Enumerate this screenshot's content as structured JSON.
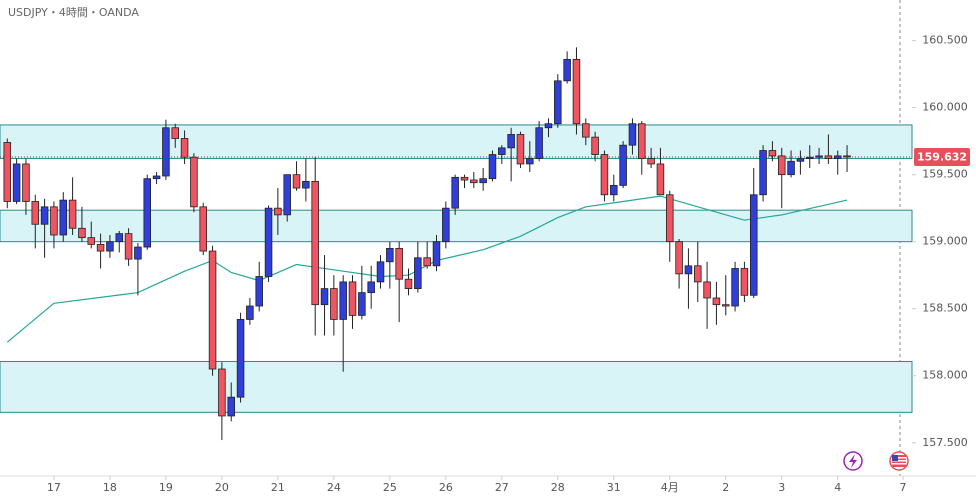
{
  "chart_data": {
    "type": "candlestick",
    "title": "USDJPY・4時間・OANDA",
    "open": [
      159.74,
      159.3,
      159.58,
      159.3,
      159.13,
      159.26,
      159.05,
      159.31,
      159.1,
      159.03,
      158.98,
      158.93,
      159.0,
      159.06,
      158.87,
      158.96,
      159.47,
      159.49,
      159.85,
      159.77,
      159.63,
      159.26,
      158.93,
      158.05,
      157.7,
      157.84,
      158.42,
      158.52,
      158.74,
      159.25,
      159.2,
      159.5,
      159.4,
      159.45,
      158.53,
      158.65,
      158.42,
      158.7,
      158.45,
      158.62,
      158.7,
      158.85,
      158.95,
      158.72,
      158.65,
      158.88,
      158.82,
      159.0,
      159.25,
      159.48,
      159.46,
      159.44,
      159.47,
      159.65,
      159.7,
      159.8,
      159.58,
      159.62,
      159.85,
      159.88,
      160.2,
      160.36,
      159.88,
      159.78,
      159.65,
      159.35,
      159.42,
      159.72,
      159.88,
      159.62,
      159.58,
      159.35,
      159.0,
      158.76,
      158.82,
      158.7,
      158.58,
      158.53,
      158.52,
      158.8,
      158.6,
      159.35,
      159.68,
      159.64,
      159.5,
      159.6,
      159.62,
      159.63,
      159.64,
      159.62,
      159.64
    ],
    "high": [
      159.77,
      159.62,
      159.62,
      159.35,
      159.32,
      159.3,
      159.37,
      159.48,
      159.26,
      159.15,
      159.06,
      159.05,
      159.08,
      159.1,
      158.99,
      159.5,
      159.52,
      159.91,
      159.88,
      159.83,
      159.66,
      159.29,
      158.97,
      158.1,
      157.95,
      158.47,
      158.58,
      158.85,
      159.27,
      159.4,
      159.5,
      159.6,
      159.62,
      159.63,
      158.9,
      158.75,
      158.75,
      158.75,
      158.82,
      158.82,
      158.9,
      159.0,
      159.0,
      158.8,
      159.0,
      159.0,
      159.05,
      159.3,
      159.5,
      159.5,
      159.52,
      159.55,
      159.68,
      159.72,
      159.85,
      159.82,
      159.75,
      159.9,
      159.92,
      160.25,
      160.42,
      160.45,
      159.92,
      159.82,
      159.68,
      159.5,
      159.75,
      159.92,
      159.9,
      159.7,
      159.7,
      159.38,
      159.02,
      158.95,
      159.0,
      158.85,
      158.7,
      158.75,
      158.85,
      158.85,
      159.55,
      159.72,
      159.75,
      159.7,
      159.68,
      159.68,
      159.72,
      159.7,
      159.8,
      159.68,
      159.72
    ],
    "low": [
      159.25,
      159.28,
      159.2,
      158.95,
      158.88,
      158.95,
      159.0,
      159.05,
      159.0,
      158.95,
      158.8,
      158.88,
      158.92,
      158.82,
      158.6,
      158.94,
      159.43,
      159.46,
      159.7,
      159.58,
      159.22,
      158.9,
      158.0,
      157.52,
      157.66,
      157.8,
      158.38,
      158.48,
      158.7,
      159.05,
      159.15,
      159.38,
      159.3,
      158.3,
      158.3,
      158.3,
      158.03,
      158.35,
      158.42,
      158.5,
      158.65,
      158.65,
      158.4,
      158.6,
      158.62,
      158.8,
      158.78,
      158.95,
      159.2,
      159.4,
      159.4,
      159.38,
      159.45,
      159.58,
      159.45,
      159.55,
      159.52,
      159.6,
      159.78,
      159.85,
      160.18,
      159.8,
      159.72,
      159.6,
      159.3,
      159.3,
      159.4,
      159.65,
      159.5,
      159.55,
      159.35,
      158.85,
      158.65,
      158.5,
      158.55,
      158.35,
      158.38,
      158.45,
      158.48,
      158.55,
      158.58,
      159.3,
      159.6,
      159.25,
      159.48,
      159.5,
      159.55,
      159.58,
      159.58,
      159.5,
      159.52
    ],
    "close": [
      159.3,
      159.58,
      159.3,
      159.13,
      159.26,
      159.05,
      159.31,
      159.1,
      159.03,
      158.98,
      158.93,
      159.0,
      159.06,
      158.87,
      158.96,
      159.47,
      159.49,
      159.85,
      159.77,
      159.63,
      159.26,
      158.93,
      158.05,
      157.7,
      157.84,
      158.42,
      158.52,
      158.74,
      159.25,
      159.2,
      159.5,
      159.4,
      159.45,
      158.53,
      158.65,
      158.42,
      158.7,
      158.45,
      158.62,
      158.7,
      158.85,
      158.95,
      158.72,
      158.65,
      158.88,
      158.82,
      159.0,
      159.25,
      159.48,
      159.46,
      159.44,
      159.47,
      159.65,
      159.7,
      159.8,
      159.58,
      159.62,
      159.85,
      159.88,
      160.2,
      160.36,
      159.88,
      159.78,
      159.65,
      159.35,
      159.42,
      159.72,
      159.88,
      159.62,
      159.58,
      159.35,
      159.0,
      158.76,
      158.82,
      158.7,
      158.58,
      158.53,
      158.52,
      158.8,
      158.6,
      159.35,
      159.68,
      159.64,
      159.5,
      159.6,
      159.62,
      159.63,
      159.64,
      159.62,
      159.64,
      159.632
    ],
    "up_color": "#2f3fd8",
    "down_color": "#ee5560",
    "ma": {
      "x": [
        0,
        5,
        14,
        19,
        22,
        24,
        27,
        31,
        36,
        40,
        43,
        46,
        51,
        55,
        59,
        62,
        66,
        70,
        74,
        79,
        83,
        90
      ],
      "values": [
        158.25,
        158.54,
        158.62,
        158.78,
        158.86,
        158.77,
        158.71,
        158.83,
        158.78,
        158.74,
        158.75,
        158.86,
        158.94,
        159.04,
        159.18,
        159.26,
        159.3,
        159.34,
        159.26,
        159.16,
        159.2,
        159.31
      ],
      "color": "#26a69a"
    },
    "zones": [
      {
        "top": 159.871,
        "bottom": 159.621
      },
      {
        "top": 159.235,
        "bottom": 159.0
      },
      {
        "top": 158.106,
        "bottom": 157.727
      }
    ],
    "last_price": 159.632,
    "ylim": [
      157.252,
      160.803
    ],
    "yticks": [
      {
        "value": 157.5,
        "label": "157.500"
      },
      {
        "value": 158.0,
        "label": "158.000"
      },
      {
        "value": 158.5,
        "label": "158.500"
      },
      {
        "value": 159.0,
        "label": "159.000"
      },
      {
        "value": 159.5,
        "label": "159.500"
      },
      {
        "value": 160.0,
        "label": "160.000"
      },
      {
        "value": 160.5,
        "label": "160.500"
      }
    ],
    "xlim": [
      -0.78,
      96.96
    ],
    "xticks": [
      {
        "value": 5,
        "label": "17"
      },
      {
        "value": 11,
        "label": "18"
      },
      {
        "value": 17,
        "label": "19"
      },
      {
        "value": 23,
        "label": "20"
      },
      {
        "value": 29,
        "label": "21"
      },
      {
        "value": 35,
        "label": "24"
      },
      {
        "value": 41,
        "label": "25"
      },
      {
        "value": 47,
        "label": "26"
      },
      {
        "value": 53,
        "label": "27"
      },
      {
        "value": 59,
        "label": "28"
      },
      {
        "value": 65,
        "label": "31"
      },
      {
        "value": 71,
        "label": "4月"
      },
      {
        "value": 77,
        "label": "2"
      },
      {
        "value": 83,
        "label": "3"
      },
      {
        "value": 89,
        "label": "4"
      },
      {
        "value": 96,
        "label": "7"
      }
    ]
  }
}
